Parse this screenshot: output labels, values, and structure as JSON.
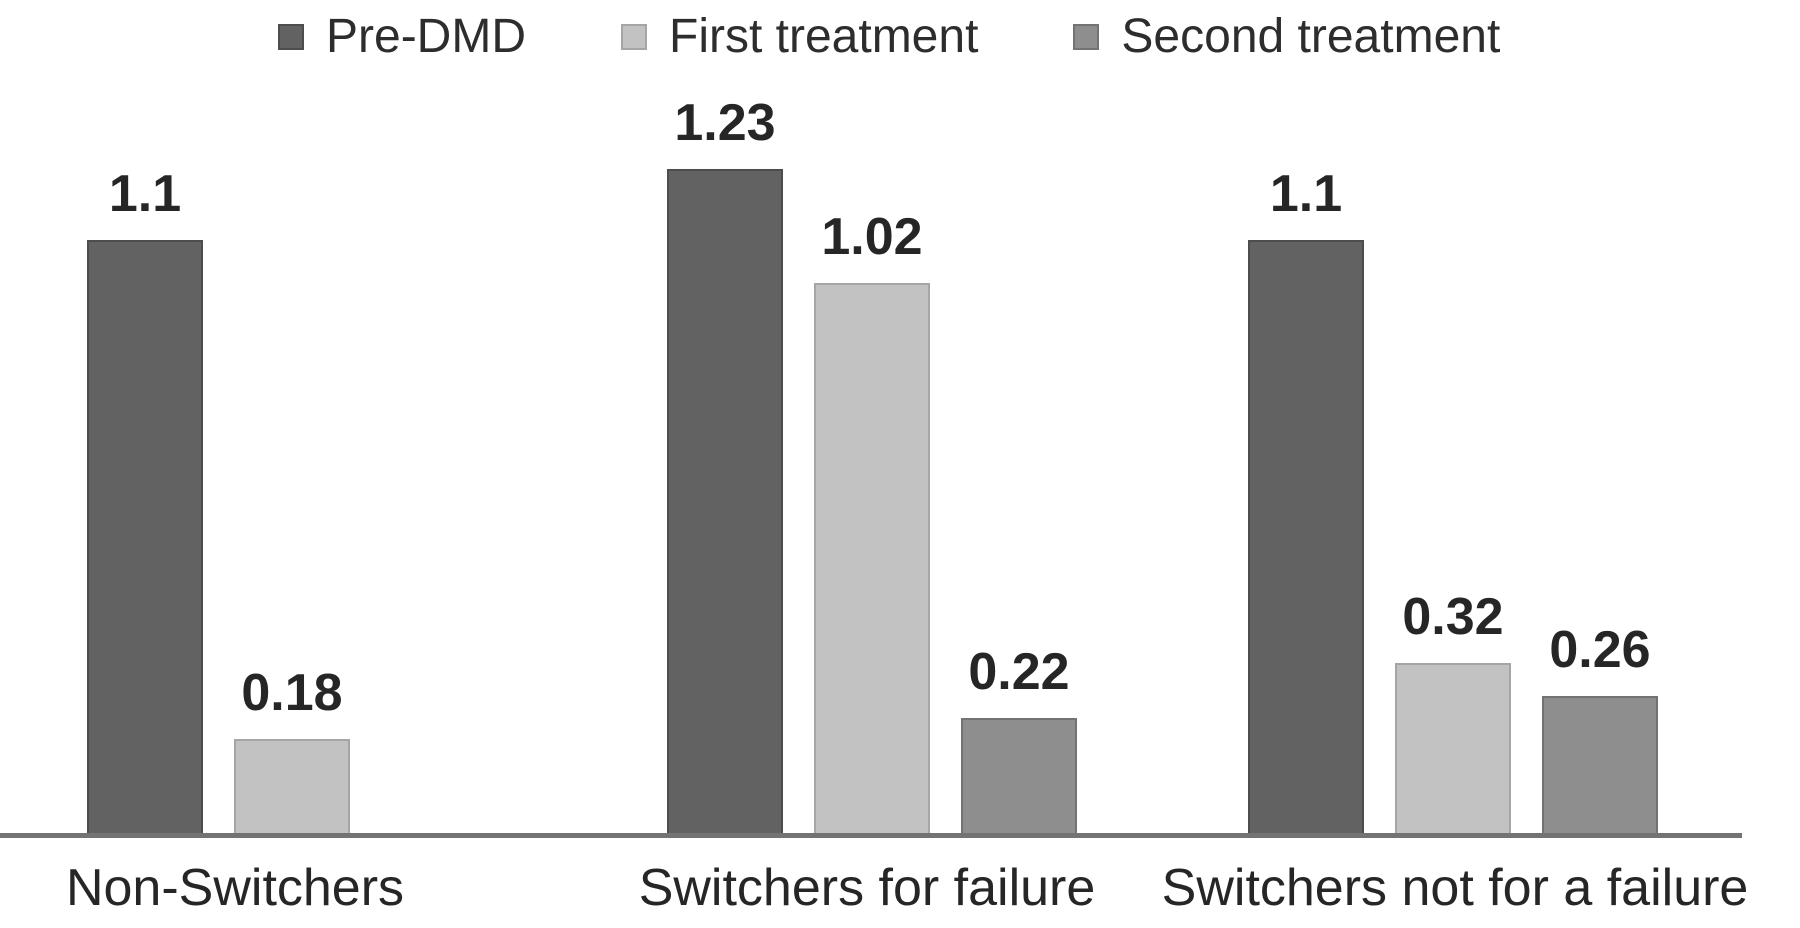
{
  "figure": {
    "background": "#ffffff",
    "text_color": "#2d2d2d"
  },
  "chart_data": {
    "type": "bar",
    "title": "",
    "xlabel": "",
    "ylabel": "",
    "categories": [
      "Non-Switchers",
      "Switchers for failure",
      "Switchers not for a failure"
    ],
    "series": [
      {
        "name": "Pre-DMD",
        "color": "#626262",
        "border_color": "#4d4d4d",
        "values": [
          1.1,
          1.23,
          1.1
        ],
        "labels": [
          "1.1",
          "1.23",
          "1.1"
        ]
      },
      {
        "name": "First treatment",
        "color": "#c2c2c2",
        "border_color": "#a5a5a5",
        "values": [
          0.18,
          1.02,
          0.32
        ],
        "labels": [
          "0.18",
          "1.02",
          "0.32"
        ]
      },
      {
        "name": "Second treatment",
        "color": "#8e8e8e",
        "border_color": "#737373",
        "values": [
          null,
          0.22,
          0.26
        ],
        "labels": [
          null,
          "0.22",
          "0.26"
        ]
      }
    ],
    "ylim": [
      0,
      1.4
    ],
    "grid": false,
    "y_axis_visible": false,
    "value_labels_shown": true,
    "legend_position": "top",
    "x_axis_line_color": "#737373"
  }
}
